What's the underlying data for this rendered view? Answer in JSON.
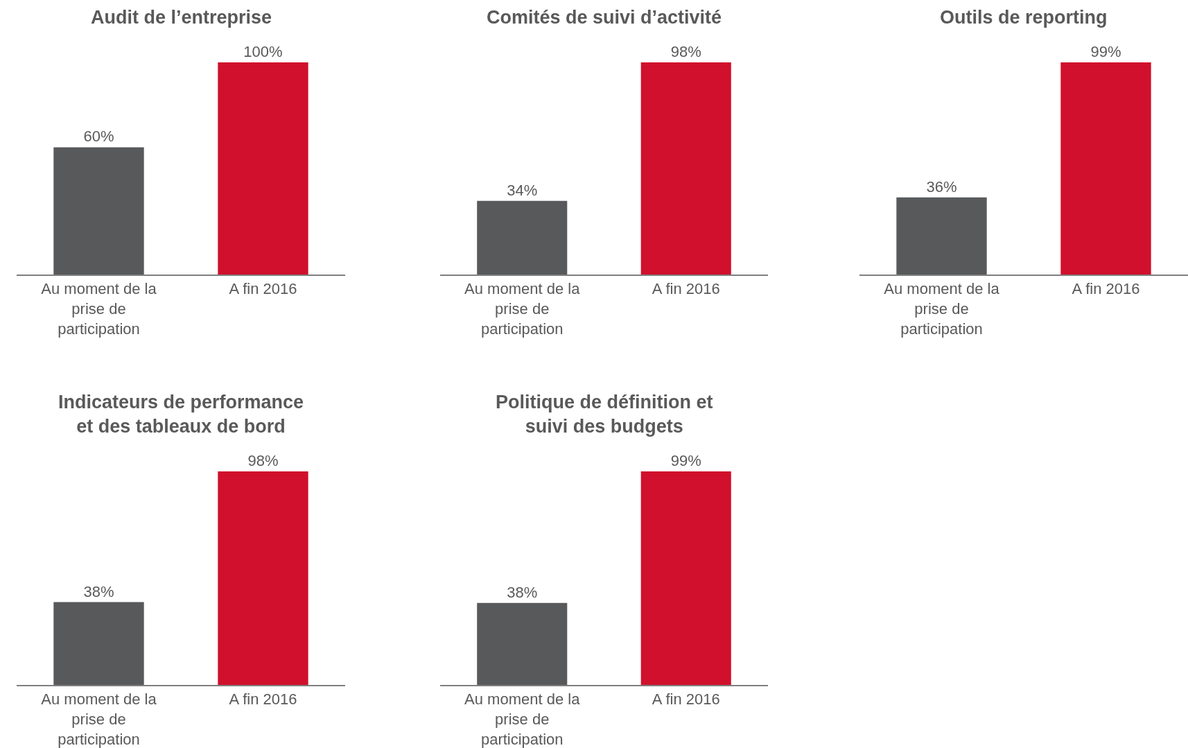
{
  "chart_data": [
    {
      "type": "bar",
      "title": "Audit de l’entreprise",
      "categories": [
        "Au moment de la prise de participation",
        "A fin 2016"
      ],
      "values": [
        60,
        100
      ],
      "colors": [
        "#58595b",
        "#d0102c"
      ],
      "value_labels": [
        "60%",
        "100%"
      ]
    },
    {
      "type": "bar",
      "title": "Comités de suivi d’activité",
      "categories": [
        "Au moment de la prise de participation",
        "A fin 2016"
      ],
      "values": [
        34,
        98
      ],
      "colors": [
        "#58595b",
        "#d0102c"
      ],
      "value_labels": [
        "34%",
        "98%"
      ]
    },
    {
      "type": "bar",
      "title": "Outils de reporting",
      "categories": [
        "Au moment de la prise de participation",
        "A fin 2016"
      ],
      "values": [
        36,
        99
      ],
      "colors": [
        "#58595b",
        "#d0102c"
      ],
      "value_labels": [
        "36%",
        "99%"
      ]
    },
    {
      "type": "bar",
      "title": "Indicateurs de performance et des tableaux de bord",
      "categories": [
        "Au moment de la prise de participation",
        "A fin 2016"
      ],
      "values": [
        38,
        98
      ],
      "colors": [
        "#58595b",
        "#d0102c"
      ],
      "value_labels": [
        "38%",
        "98%"
      ]
    },
    {
      "type": "bar",
      "title": "Politique de définition et suivi des budgets",
      "categories": [
        "Au moment de la prise de participation",
        "A fin 2016"
      ],
      "values": [
        38,
        99
      ],
      "colors": [
        "#58595b",
        "#d0102c"
      ],
      "value_labels": [
        "38%",
        "99%"
      ]
    }
  ]
}
